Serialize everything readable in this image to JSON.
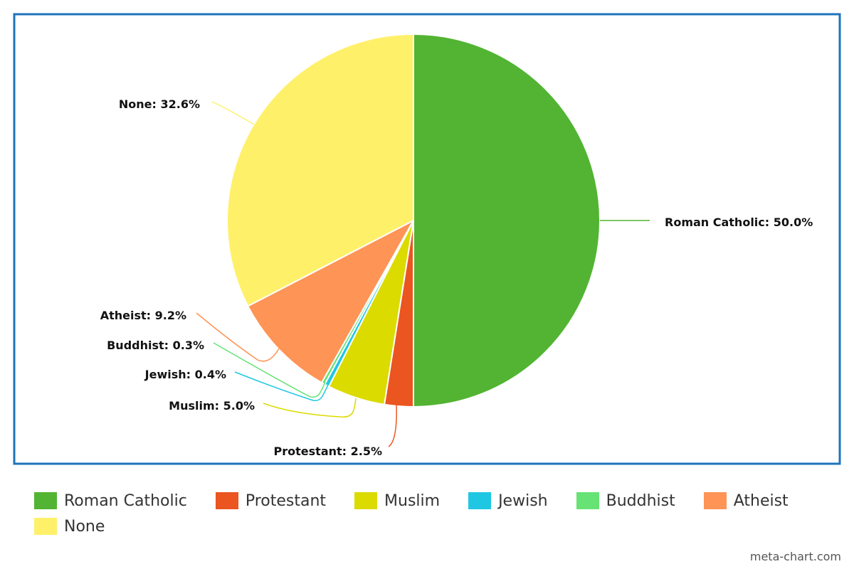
{
  "chart_data": {
    "type": "pie",
    "title": "",
    "categories": [
      "Roman Catholic",
      "Protestant",
      "Muslim",
      "Jewish",
      "Buddhist",
      "Atheist",
      "None"
    ],
    "values": [
      50.0,
      2.5,
      5.0,
      0.4,
      0.3,
      9.2,
      32.6
    ],
    "unit": "%",
    "data_labels": [
      "Roman Catholic: 50.0%",
      "Protestant: 2.5%",
      "Muslim: 5.0%",
      "Jewish: 0.4%",
      "Buddhist: 0.3%",
      "Atheist: 9.2%",
      "None: 32.6%"
    ],
    "colors": [
      "#52b432",
      "#ea5520",
      "#dbdb00",
      "#20c7e3",
      "#66e374",
      "#fe9456",
      "#fff06a"
    ],
    "legend_position": "bottom",
    "frame_color": "#1e74bb"
  },
  "legend": {
    "items": [
      "Roman Catholic",
      "Protestant",
      "Muslim",
      "Jewish",
      "Buddhist",
      "Atheist",
      "None"
    ]
  },
  "watermark": "meta-chart.com"
}
